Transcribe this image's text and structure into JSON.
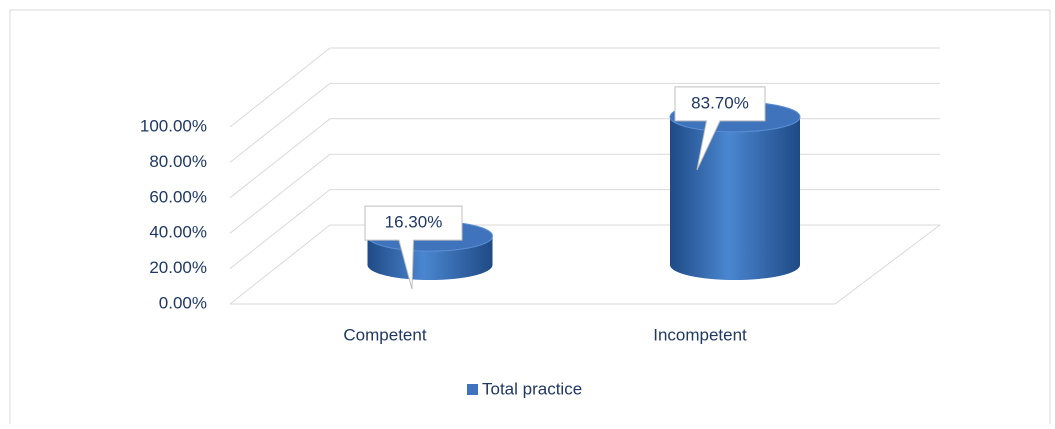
{
  "chart_data": {
    "type": "bar3d",
    "categories": [
      "Competent",
      "Incompetent"
    ],
    "series": [
      {
        "name": "Total practice",
        "color": "#3f74bd",
        "values": [
          16.3,
          83.7
        ],
        "value_labels": [
          "16.30%",
          "83.70%"
        ]
      }
    ],
    "ylim": [
      0,
      100
    ],
    "yticks": [
      {
        "value": 0,
        "label": "0.00%"
      },
      {
        "value": 20,
        "label": "20.00%"
      },
      {
        "value": 40,
        "label": "40.00%"
      },
      {
        "value": 60,
        "label": "60.00%"
      },
      {
        "value": 80,
        "label": "80.00%"
      },
      {
        "value": 100,
        "label": "100.00%"
      }
    ],
    "grid": true,
    "legend": "bottom"
  }
}
